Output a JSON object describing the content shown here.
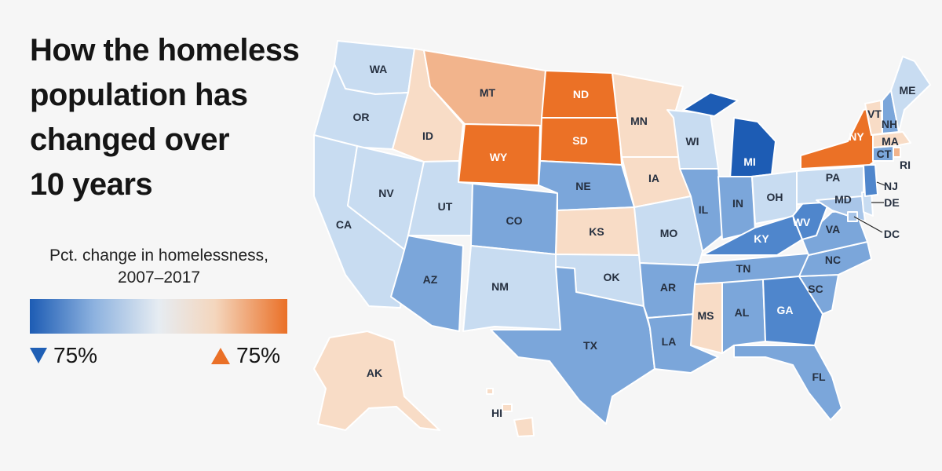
{
  "title_lines": [
    "How the homeless",
    "population has",
    "changed over",
    "10 years"
  ],
  "legend": {
    "title_lines": [
      "Pct. change in homelessness,",
      "2007–2017"
    ],
    "low_label": "75%",
    "high_label": "75%",
    "low_icon": "triangle-down-icon",
    "high_icon": "triangle-up-icon",
    "gradient_colors": [
      "#1d5cb4",
      "#8db2df",
      "#e6ecf2",
      "#f4d6bd",
      "#ea7027"
    ]
  },
  "colors": {
    "dark_blue": "#1d5cb4",
    "mid_blue": "#4f86cc",
    "blue": "#7ba6da",
    "light_blue": "#a8c5e8",
    "pale_blue": "#c8dcf1",
    "pale_orange": "#f8dcc6",
    "light_orange": "#f2b48c",
    "orange": "#eb7126",
    "background": "#f6f6f6"
  },
  "states": {
    "WA": {
      "label": "WA",
      "color": "#c8dcf1"
    },
    "OR": {
      "label": "OR",
      "color": "#c8dcf1"
    },
    "CA": {
      "label": "CA",
      "color": "#c8dcf1"
    },
    "NV": {
      "label": "NV",
      "color": "#c8dcf1"
    },
    "ID": {
      "label": "ID",
      "color": "#f8dcc6"
    },
    "MT": {
      "label": "MT",
      "color": "#f2b48c"
    },
    "WY": {
      "label": "WY",
      "color": "#eb7126"
    },
    "UT": {
      "label": "UT",
      "color": "#c8dcf1"
    },
    "AZ": {
      "label": "AZ",
      "color": "#7ba6da"
    },
    "CO": {
      "label": "CO",
      "color": "#7ba6da"
    },
    "NM": {
      "label": "NM",
      "color": "#c8dcf1"
    },
    "ND": {
      "label": "ND",
      "color": "#eb7126"
    },
    "SD": {
      "label": "SD",
      "color": "#eb7126"
    },
    "NE": {
      "label": "NE",
      "color": "#7ba6da"
    },
    "KS": {
      "label": "KS",
      "color": "#f8dcc6"
    },
    "OK": {
      "label": "OK",
      "color": "#c8dcf1"
    },
    "TX": {
      "label": "TX",
      "color": "#7ba6da"
    },
    "MN": {
      "label": "MN",
      "color": "#f8dcc6"
    },
    "IA": {
      "label": "IA",
      "color": "#f8dcc6"
    },
    "MO": {
      "label": "MO",
      "color": "#c8dcf1"
    },
    "AR": {
      "label": "AR",
      "color": "#7ba6da"
    },
    "LA": {
      "label": "LA",
      "color": "#7ba6da"
    },
    "WI": {
      "label": "WI",
      "color": "#c8dcf1"
    },
    "IL": {
      "label": "IL",
      "color": "#7ba6da"
    },
    "MI": {
      "label": "MI",
      "color": "#1d5cb4"
    },
    "IN": {
      "label": "IN",
      "color": "#7ba6da"
    },
    "OH": {
      "label": "OH",
      "color": "#c8dcf1"
    },
    "KY": {
      "label": "KY",
      "color": "#4f86cc"
    },
    "TN": {
      "label": "TN",
      "color": "#7ba6da"
    },
    "MS": {
      "label": "MS",
      "color": "#f8dcc6"
    },
    "AL": {
      "label": "AL",
      "color": "#7ba6da"
    },
    "GA": {
      "label": "GA",
      "color": "#4f86cc"
    },
    "FL": {
      "label": "FL",
      "color": "#7ba6da"
    },
    "SC": {
      "label": "SC",
      "color": "#7ba6da"
    },
    "NC": {
      "label": "NC",
      "color": "#7ba6da"
    },
    "VA": {
      "label": "VA",
      "color": "#7ba6da"
    },
    "WV": {
      "label": "WV",
      "color": "#4f86cc"
    },
    "PA": {
      "label": "PA",
      "color": "#c8dcf1"
    },
    "NY": {
      "label": "NY",
      "color": "#eb7126"
    },
    "NJ": {
      "label": "NJ",
      "color": "#4f86cc"
    },
    "DE": {
      "label": "DE",
      "color": "#c8dcf1"
    },
    "MD": {
      "label": "MD",
      "color": "#a8c5e8"
    },
    "DC": {
      "label": "DC",
      "color": "#a8c5e8"
    },
    "CT": {
      "label": "CT",
      "color": "#7ba6da"
    },
    "RI": {
      "label": "RI",
      "color": "#f2b48c"
    },
    "MA": {
      "label": "MA",
      "color": "#f8dcc6"
    },
    "VT": {
      "label": "VT",
      "color": "#f8dcc6"
    },
    "NH": {
      "label": "NH",
      "color": "#7ba6da"
    },
    "ME": {
      "label": "ME",
      "color": "#c8dcf1"
    },
    "AK": {
      "label": "AK",
      "color": "#f8dcc6"
    },
    "HI": {
      "label": "HI",
      "color": "#f8dcc6"
    }
  }
}
